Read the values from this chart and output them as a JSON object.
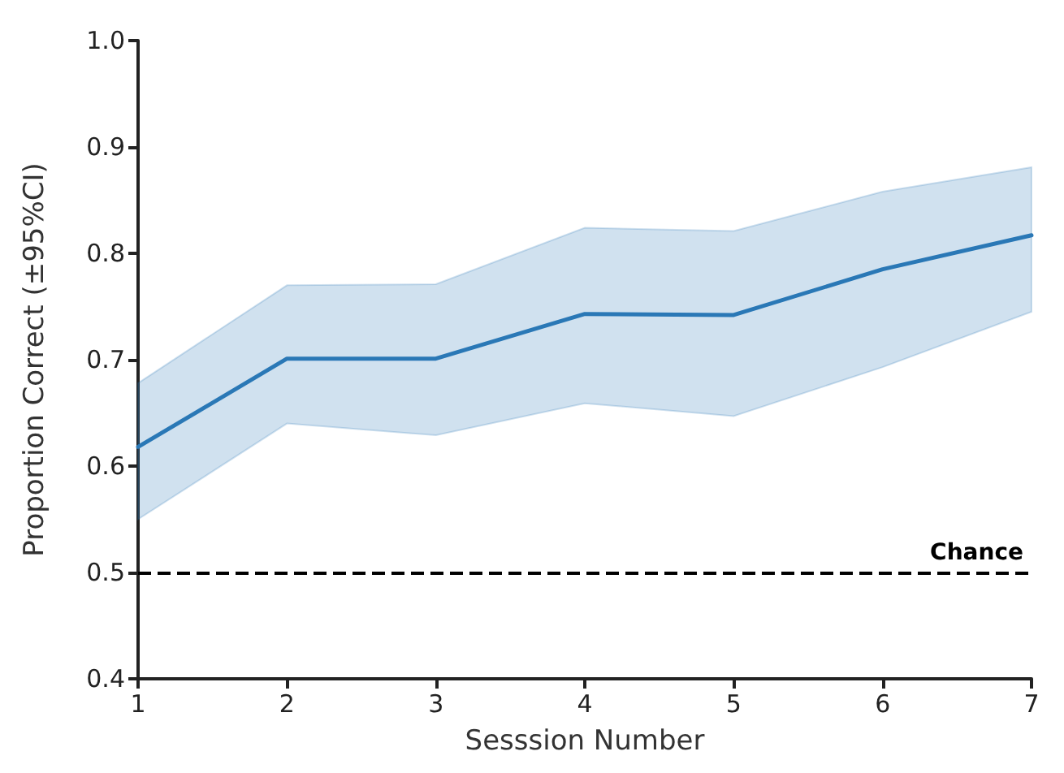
{
  "chart_data": {
    "type": "line",
    "xlabel": "Sesssion Number",
    "ylabel": "Proportion Correct (±95%CI)",
    "x": [
      1,
      2,
      3,
      4,
      5,
      6,
      7
    ],
    "series": [
      {
        "color": "#2a78b6",
        "values": [
          0.618,
          0.701,
          0.701,
          0.743,
          0.742,
          0.785,
          0.817
        ],
        "lower": [
          0.55,
          0.64,
          0.629,
          0.659,
          0.647,
          0.693,
          0.745
        ],
        "upper": [
          0.678,
          0.77,
          0.771,
          0.824,
          0.821,
          0.858,
          0.881
        ]
      }
    ],
    "xlim": [
      1,
      7
    ],
    "xticks": [
      1,
      2,
      3,
      4,
      5,
      6,
      7
    ],
    "ylim": [
      0.4,
      1.0
    ],
    "yticks": [
      {
        "value": 0.4,
        "label": "0.4"
      },
      {
        "value": 0.5,
        "label": "0.5"
      },
      {
        "value": 0.6,
        "label": "0.6"
      },
      {
        "value": 0.7,
        "label": "0.7"
      },
      {
        "value": 0.8,
        "label": "0.8"
      },
      {
        "value": 0.9,
        "label": "0.9"
      },
      {
        "value": 1.0,
        "label": "1.0"
      }
    ],
    "ref_lines": [
      {
        "axis": "y",
        "value": 0.5,
        "label": "Chance",
        "color": "#000000",
        "line_style": "dashed"
      }
    ],
    "grid": false,
    "marker": "none",
    "line_style": "solid"
  }
}
